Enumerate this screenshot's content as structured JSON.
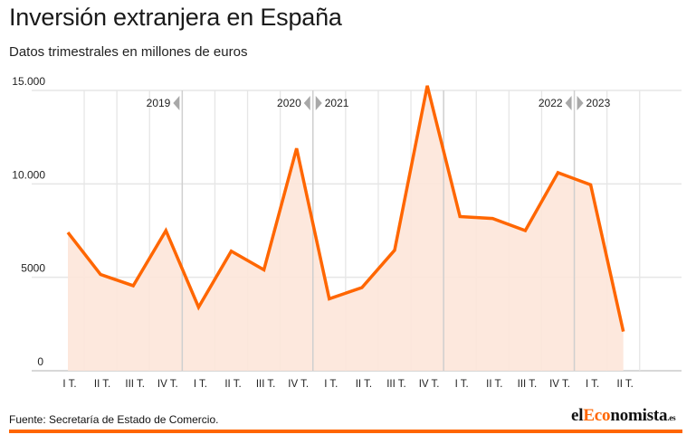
{
  "header": {
    "title": "Inversión extranjera en España",
    "subtitle": "Datos trimestrales en millones de euros"
  },
  "footer": {
    "source": "Fuente: Secretaría de Estado de Comercio.",
    "logo": {
      "part1": "el",
      "part2": "Eco",
      "part3": "nomista",
      "tld": ".es"
    }
  },
  "colors": {
    "line": "#ff6600",
    "area": "#fde6d9",
    "grid": "#e6e6e6",
    "year_divider": "#cfcfcf",
    "marker": "#a8a8a8",
    "brand": "#ff6600"
  },
  "chart_data": {
    "type": "area",
    "title": "Inversión extranjera en España",
    "subtitle": "Datos trimestrales en millones de euros",
    "xlabel": "",
    "ylabel": "",
    "ylim": [
      0,
      15000
    ],
    "yticks": [
      0,
      5000,
      10000,
      15000
    ],
    "ytick_labels": [
      "0",
      "5000",
      "10.000",
      "15.000"
    ],
    "grid": true,
    "categories": [
      "I T.",
      "II T.",
      "III T.",
      "IV T.",
      "I T.",
      "II T.",
      "III T.",
      "IV T.",
      "I T.",
      "II T.",
      "III T.",
      "IV T.",
      "I T.",
      "II T.",
      "III T.",
      "IV T.",
      "I T.",
      "II T."
    ],
    "years": [
      2019,
      2019,
      2019,
      2019,
      2020,
      2020,
      2020,
      2020,
      2021,
      2021,
      2021,
      2021,
      2022,
      2022,
      2022,
      2022,
      2023,
      2023
    ],
    "series": [
      {
        "name": "Inversión extranjera",
        "values": [
          7400,
          5150,
          4550,
          7500,
          3400,
          6400,
          5400,
          11900,
          3850,
          4450,
          6450,
          15250,
          8250,
          8150,
          7500,
          10600,
          9950,
          2100
        ]
      }
    ],
    "year_markers": [
      {
        "label": "2019",
        "arrow": "left",
        "after_index": 3
      },
      {
        "label": "2020",
        "arrow": "left",
        "after_index": 7
      },
      {
        "label": "2021",
        "arrow": "right",
        "after_index": 7
      },
      {
        "label": "2022",
        "arrow": "left",
        "after_index": 15
      },
      {
        "label": "2023",
        "arrow": "right",
        "after_index": 15
      }
    ],
    "year_dividers_after_index": [
      3,
      7,
      11,
      15
    ]
  }
}
